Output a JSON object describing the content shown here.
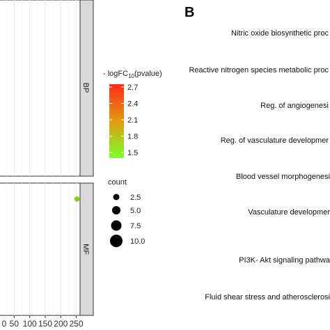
{
  "panel_b_label": "B",
  "chart_data": {
    "type": "scatter",
    "facets": [
      "BP",
      "MF"
    ],
    "x_tick_labels": [
      "50",
      "100",
      "150",
      "200",
      "250"
    ],
    "x_ticks": [
      50,
      100,
      150,
      200,
      250
    ],
    "xlim": [
      0,
      262
    ],
    "series": [
      {
        "facet": "MF",
        "x": 252,
        "y": 0.88,
        "count": 1,
        "neg_log10_pvalue": 1.55,
        "color": "#7ed321"
      }
    ],
    "color_legend": {
      "title_prefix": "- logFC",
      "title_sub": "10",
      "title_suffix": "(pvalue)",
      "ticks": [
        "2.7",
        "2.4",
        "2.1",
        "1.8",
        "1.5"
      ],
      "range": [
        1.4,
        2.75
      ],
      "color_high": "#ff2a1a",
      "color_low": "#7cff2a"
    },
    "size_legend": {
      "title": "count",
      "entries": [
        "2.5",
        "5.0",
        "7.5",
        "10.0"
      ]
    },
    "panel_b_terms": [
      "Nitric oxide biosynthetic proc",
      "Reactive nitrogen species metabolic proc",
      "Reg. of angiogenesi",
      "Reg. of vasculature developmer",
      "Blood vessel morphogenesi",
      "Vasculature developmer",
      "PI3K- Akt signaling pathwa",
      "Fluid shear stress and atherosclerosi"
    ]
  }
}
